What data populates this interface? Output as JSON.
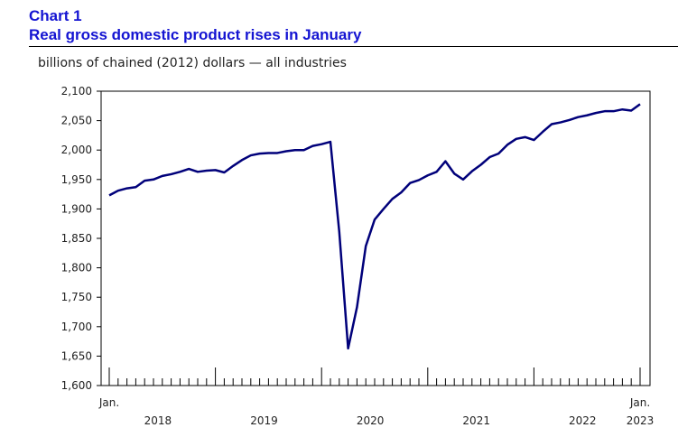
{
  "header": {
    "chart_number": "Chart 1",
    "title": "Real gross domestic product rises in January"
  },
  "colors": {
    "title": "#1414d2",
    "line": "#00007a",
    "axis": "#000000"
  },
  "chart_data": {
    "type": "line",
    "title": "Real gross domestic product rises in January",
    "ylabel": "billions of chained (2012) dollars — all industries",
    "xlabel": "",
    "ylim": [
      1600,
      2100
    ],
    "yticks": [
      "2,100",
      "2,050",
      "2,000",
      "1,950",
      "1,900",
      "1,850",
      "1,800",
      "1,750",
      "1,700",
      "1,650",
      "1,600"
    ],
    "ytick_values": [
      2100,
      2050,
      2000,
      1950,
      1900,
      1850,
      1800,
      1750,
      1700,
      1650,
      1600
    ],
    "x_start_label": "Jan.",
    "x_end_label": "Jan.",
    "x_year_labels": [
      "2018",
      "2019",
      "2020",
      "2021",
      "2022",
      "2023"
    ],
    "grid": false,
    "legend": "none",
    "series": [
      {
        "x_start": "2018-01",
        "x_end": "2023-01",
        "frequency": "monthly",
        "values": [
          1923,
          1931,
          1935,
          1937,
          1948,
          1950,
          1956,
          1959,
          1963,
          1968,
          1963,
          1965,
          1966,
          1962,
          1973,
          1983,
          1991,
          1994,
          1995,
          1995,
          1998,
          2000,
          2000,
          2007,
          2010,
          2014,
          1861,
          1663,
          1733,
          1837,
          1882,
          1900,
          1917,
          1928,
          1944,
          1949,
          1957,
          1963,
          1981,
          1960,
          1950,
          1964,
          1975,
          1988,
          1994,
          2009,
          2019,
          2022,
          2017,
          2031,
          2044,
          2047,
          2051,
          2056,
          2059,
          2063,
          2066,
          2066,
          2069,
          2067,
          2078
        ]
      }
    ]
  }
}
